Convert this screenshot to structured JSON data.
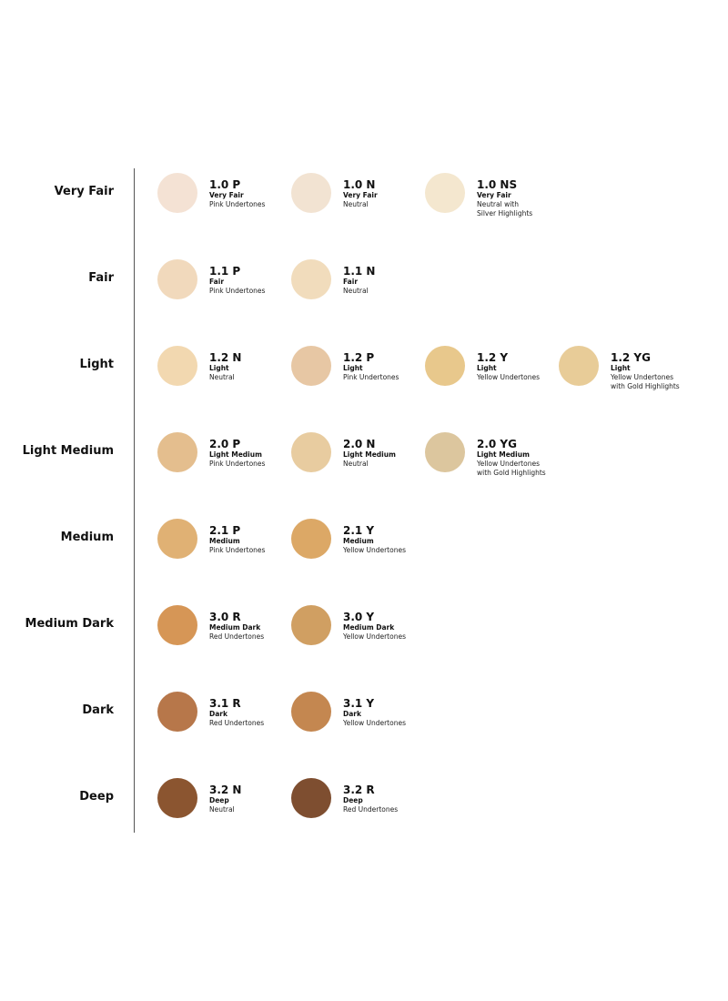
{
  "rows": [
    {
      "label": "Very Fair",
      "shades": [
        {
          "code": "1.0 P",
          "depth": "Very Fair",
          "note": [
            "Pink Undertones"
          ],
          "color": "#f4e2d4"
        },
        {
          "code": "1.0 N",
          "depth": "Very Fair",
          "note": [
            "Neutral"
          ],
          "color": "#f2e3d2"
        },
        {
          "code": "1.0 NS",
          "depth": "Very Fair",
          "note": [
            "Neutral with",
            "Silver Highlights"
          ],
          "color": "#f4e7cf"
        }
      ]
    },
    {
      "label": "Fair",
      "shades": [
        {
          "code": "1.1 P",
          "depth": "Fair",
          "note": [
            "Pink Undertones"
          ],
          "color": "#f1d9bc"
        },
        {
          "code": "1.1 N",
          "depth": "Fair",
          "note": [
            "Neutral"
          ],
          "color": "#f1dcbc"
        }
      ]
    },
    {
      "label": "Light",
      "shades": [
        {
          "code": "1.2 N",
          "depth": "Light",
          "note": [
            "Neutral"
          ],
          "color": "#f2d8b0"
        },
        {
          "code": "1.2 P",
          "depth": "Light",
          "note": [
            "Pink Undertones"
          ],
          "color": "#e7c7a4"
        },
        {
          "code": "1.2 Y",
          "depth": "Light",
          "note": [
            "Yellow Undertones"
          ],
          "color": "#e8c88c"
        },
        {
          "code": "1.2 YG",
          "depth": "Light",
          "note": [
            "Yellow Undertones",
            "with Gold Highlights"
          ],
          "color": "#e8cc98"
        }
      ]
    },
    {
      "label": "Light Medium",
      "shades": [
        {
          "code": "2.0 P",
          "depth": "Light Medium",
          "note": [
            "Pink Undertones"
          ],
          "color": "#e4be8e"
        },
        {
          "code": "2.0 N",
          "depth": "Light Medium",
          "note": [
            "Neutral"
          ],
          "color": "#e8cca0"
        },
        {
          "code": "2.0 YG",
          "depth": "Light Medium",
          "note": [
            "Yellow Undertones",
            "with Gold Highlights"
          ],
          "color": "#dcc69e"
        }
      ]
    },
    {
      "label": "Medium",
      "shades": [
        {
          "code": "2.1 P",
          "depth": "Medium",
          "note": [
            "Pink Undertones"
          ],
          "color": "#e0b174"
        },
        {
          "code": "2.1 Y",
          "depth": "Medium",
          "note": [
            "Yellow Undertones"
          ],
          "color": "#dca866"
        }
      ]
    },
    {
      "label": "Medium Dark",
      "shades": [
        {
          "code": "3.0 R",
          "depth": "Medium Dark",
          "note": [
            "Red Undertones"
          ],
          "color": "#d69656"
        },
        {
          "code": "3.0 Y",
          "depth": "Medium Dark",
          "note": [
            "Yellow Undertones"
          ],
          "color": "#d09f62"
        }
      ]
    },
    {
      "label": "Dark",
      "shades": [
        {
          "code": "3.1 R",
          "depth": "Dark",
          "note": [
            "Red Undertones"
          ],
          "color": "#b7774a"
        },
        {
          "code": "3.1 Y",
          "depth": "Dark",
          "note": [
            "Yellow Undertones"
          ],
          "color": "#c48750"
        }
      ]
    },
    {
      "label": "Deep",
      "shades": [
        {
          "code": "3.2 N",
          "depth": "Deep",
          "note": [
            "Neutral"
          ],
          "color": "#8b5530"
        },
        {
          "code": "3.2 R",
          "depth": "Deep",
          "note": [
            "Red Undertones"
          ],
          "color": "#7e4e30"
        }
      ]
    }
  ]
}
